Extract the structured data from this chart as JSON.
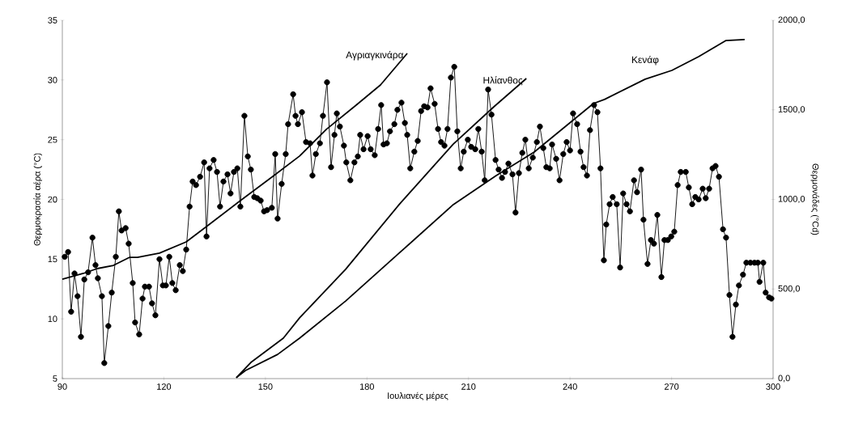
{
  "chart_data": {
    "type": "line",
    "xlabel": "Ιουλιανές μέρες",
    "ylabel": "Θερμοκρασία αέρα (°C)",
    "y2label": "Θερμονάδες (°Cd)",
    "xlim": [
      90,
      300
    ],
    "xticks": [
      90,
      120,
      150,
      180,
      210,
      240,
      270,
      300
    ],
    "ylim": [
      5,
      35
    ],
    "yticks": [
      5,
      10,
      15,
      20,
      25,
      30,
      35
    ],
    "y2lim": [
      0,
      2000
    ],
    "y2ticks": [
      {
        "value": 0,
        "label": "0,0"
      },
      {
        "value": 500,
        "label": "500,0"
      },
      {
        "value": 1000,
        "label": "1000,0"
      },
      {
        "value": 1500,
        "label": "1500,0"
      },
      {
        "value": 2000,
        "label": "2000,0"
      }
    ],
    "line_style": "solid",
    "series": [
      {
        "color": "#000000",
        "marker": "circle",
        "x": [
          90.7,
          91.7,
          92.6,
          93.6,
          94.5,
          95.5,
          96.5,
          97.6,
          98.9,
          99.8,
          100.5,
          101.7,
          102.4,
          103.6,
          104.6,
          105.8,
          106.7,
          107.5,
          108.7,
          109.6,
          110.8,
          111.5,
          112.7,
          113.7,
          114.4,
          115.6,
          116.5,
          117.5,
          118.7,
          119.7,
          120.6,
          121.6,
          122.5,
          123.5,
          124.7,
          125.6,
          126.6,
          127.6,
          128.5,
          129.5,
          130.7,
          131.9,
          132.6,
          133.5,
          134.7,
          135.7,
          136.6,
          137.6,
          138.8,
          139.7,
          140.7,
          141.7,
          142.6,
          143.8,
          144.8,
          145.7,
          146.7,
          147.6,
          148.6,
          149.6,
          150.5,
          151.9,
          152.9,
          153.6,
          154.8,
          156.0,
          156.7,
          158.2,
          158.9,
          159.6,
          160.8,
          162.0,
          163.2,
          163.9,
          164.9,
          166.1,
          167.0,
          168.2,
          169.4,
          170.4,
          171.1,
          172.0,
          173.2,
          173.9,
          175.1,
          176.3,
          177.3,
          178.0,
          179.0,
          180.2,
          181.1,
          182.3,
          183.3,
          184.2,
          184.9,
          185.9,
          186.8,
          188.1,
          189.0,
          190.2,
          191.2,
          191.9,
          192.8,
          194.0,
          195.0,
          196.0,
          196.9,
          197.9,
          198.8,
          200.0,
          201.0,
          201.9,
          202.9,
          203.8,
          204.8,
          205.8,
          206.7,
          207.7,
          208.6,
          209.8,
          210.8,
          212.0,
          212.9,
          213.9,
          214.8,
          215.8,
          216.8,
          218.0,
          218.9,
          219.9,
          220.8,
          221.8,
          223.0,
          223.9,
          224.9,
          225.9,
          226.8,
          227.8,
          229.0,
          230.2,
          231.1,
          232.1,
          233.0,
          234.0,
          234.7,
          235.9,
          236.9,
          238.0,
          239.0,
          240.0,
          240.9,
          242.1,
          243.1,
          244.0,
          245.0,
          245.9,
          247.1,
          248.1,
          249.0,
          250.0,
          250.7,
          251.7,
          252.6,
          253.8,
          254.8,
          255.7,
          256.7,
          257.7,
          258.9,
          259.8,
          261.0,
          261.7,
          262.9,
          263.9,
          264.8,
          265.8,
          267.0,
          267.9,
          268.9,
          269.9,
          270.8,
          271.8,
          272.7,
          274.2,
          275.1,
          276.1,
          277.0,
          278.0,
          279.2,
          280.1,
          281.1,
          282.1,
          283.0,
          284.0,
          285.2,
          286.1,
          287.1,
          288.0,
          289.0,
          289.9,
          291.1,
          292.1,
          293.3,
          294.5,
          295.5,
          296.0,
          297.1,
          297.8,
          298.8,
          299.5
        ],
        "values": [
          15.2,
          15.6,
          10.6,
          13.8,
          11.9,
          8.5,
          13.3,
          13.9,
          16.8,
          14.5,
          13.4,
          11.9,
          6.3,
          9.4,
          12.2,
          15.2,
          19.0,
          17.4,
          17.6,
          16.3,
          13.0,
          9.7,
          8.7,
          11.7,
          12.7,
          12.7,
          11.3,
          10.3,
          15.0,
          12.8,
          12.8,
          15.2,
          13.0,
          12.4,
          14.5,
          14.0,
          15.8,
          19.4,
          21.5,
          21.2,
          21.9,
          23.1,
          16.9,
          22.6,
          23.3,
          22.3,
          19.4,
          21.5,
          22.1,
          20.5,
          22.3,
          22.6,
          19.4,
          27.0,
          23.6,
          22.5,
          20.2,
          20.1,
          19.9,
          19.0,
          19.1,
          19.3,
          23.8,
          18.4,
          21.3,
          23.8,
          26.3,
          28.8,
          27.0,
          26.3,
          27.3,
          24.8,
          24.7,
          22.0,
          23.8,
          24.7,
          27.0,
          29.8,
          22.7,
          25.4,
          27.2,
          26.1,
          24.5,
          23.1,
          21.6,
          23.1,
          23.6,
          25.4,
          24.2,
          25.3,
          24.2,
          23.7,
          25.9,
          27.9,
          24.6,
          24.7,
          25.7,
          26.3,
          27.5,
          28.1,
          26.4,
          25.4,
          22.6,
          24.0,
          24.9,
          27.4,
          27.8,
          27.7,
          29.3,
          28.0,
          25.9,
          24.8,
          24.5,
          25.9,
          30.2,
          31.1,
          25.7,
          22.6,
          24.0,
          25.0,
          24.4,
          24.2,
          25.9,
          24.0,
          21.6,
          29.2,
          27.1,
          23.3,
          22.5,
          21.8,
          22.3,
          23.0,
          22.1,
          18.9,
          22.2,
          23.9,
          25.0,
          22.6,
          23.5,
          24.8,
          26.1,
          24.3,
          22.7,
          22.6,
          24.6,
          23.4,
          21.6,
          23.8,
          24.8,
          24.1,
          27.2,
          26.3,
          24.0,
          22.7,
          22.0,
          25.8,
          27.9,
          27.3,
          22.6,
          14.9,
          17.9,
          19.6,
          20.2,
          19.6,
          14.3,
          20.5,
          19.6,
          19.0,
          21.6,
          20.6,
          22.5,
          18.3,
          14.6,
          16.6,
          16.3,
          18.7,
          13.5,
          16.6,
          16.6,
          16.9,
          17.3,
          21.2,
          22.3,
          22.3,
          21.0,
          19.6,
          20.2,
          20.0,
          20.9,
          20.1,
          20.9,
          22.6,
          22.8,
          21.9,
          17.5,
          16.8,
          12.0,
          8.5,
          11.2,
          12.8,
          13.7,
          14.7,
          14.7,
          14.7,
          14.7,
          13.1,
          14.7,
          12.2,
          11.8,
          11.7
        ]
      },
      {
        "name": "Αγριαγκινάρα",
        "axis": "y2",
        "color": "#000000",
        "marker": "none",
        "x": [
          90,
          96.2,
          100.3,
          105.1,
          109.9,
          112.2,
          118.7,
          126.6,
          132.6,
          142.6,
          152.2,
          160.1,
          168.0,
          176.8,
          184.0,
          191.9
        ],
        "values": [
          555,
          587,
          614,
          632,
          677,
          677,
          700,
          763,
          849,
          993,
          1129,
          1242,
          1391,
          1526,
          1639,
          1815
        ]
      },
      {
        "name": "Ηλίανθος",
        "axis": "y2",
        "color": "#000000",
        "marker": "none",
        "x": [
          141.4,
          145.7,
          155.3,
          160.1,
          173.7,
          189.5,
          205.5,
          217.5,
          227.1
        ],
        "values": [
          5,
          90,
          226,
          339,
          610,
          971,
          1309,
          1517,
          1675
        ]
      },
      {
        "name": "Κενάφ",
        "axis": "y2",
        "color": "#000000",
        "marker": "none",
        "x": [
          141.4,
          144.1,
          153.6,
          160.1,
          173.7,
          189.5,
          205.5,
          218.2,
          229.4,
          246.9,
          250.2,
          262.2,
          270.1,
          278.0,
          286.1,
          291.6
        ],
        "values": [
          5,
          45,
          135,
          226,
          433,
          700,
          971,
          1133,
          1264,
          1535,
          1558,
          1671,
          1720,
          1797,
          1887,
          1892
        ]
      }
    ]
  }
}
